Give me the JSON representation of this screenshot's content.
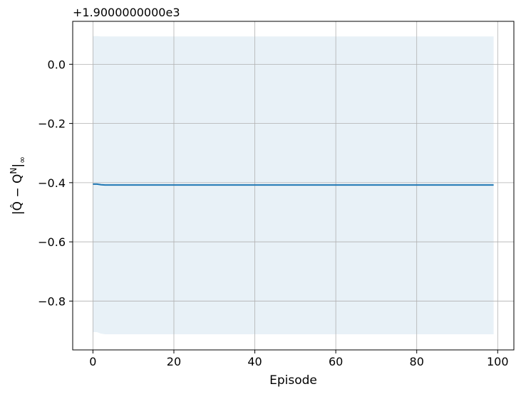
{
  "chart_data": {
    "type": "line",
    "title": "",
    "xlabel": "Episode",
    "ylabel": "|Q̂ − Q^N|∞",
    "y_offset_text": "+1.9000000000e3",
    "xlim": [
      -5,
      104
    ],
    "ylim": [
      -0.965,
      0.145
    ],
    "xticks": [
      0,
      20,
      40,
      60,
      80,
      100
    ],
    "xtick_labels": [
      "0",
      "20",
      "40",
      "60",
      "80",
      "100"
    ],
    "yticks": [
      0.0,
      -0.2,
      -0.4,
      -0.6,
      -0.8
    ],
    "ytick_labels": [
      "0.0",
      "−0.2",
      "−0.4",
      "−0.6",
      "−0.8"
    ],
    "grid": true,
    "series": [
      {
        "color": "#1f77b4",
        "x": [
          0,
          1,
          2,
          3,
          5,
          10,
          20,
          40,
          60,
          80,
          99
        ],
        "y": [
          -0.405,
          -0.405,
          -0.407,
          -0.408,
          -0.408,
          -0.408,
          -0.408,
          -0.408,
          -0.408,
          -0.408,
          -0.408
        ]
      }
    ],
    "band": {
      "color": "#1f77b4",
      "opacity": 0.1,
      "x": [
        0,
        1,
        2,
        3,
        5,
        10,
        20,
        40,
        60,
        80,
        99
      ],
      "upper": [
        0.095,
        0.095,
        0.094,
        0.094,
        0.094,
        0.094,
        0.094,
        0.094,
        0.094,
        0.094,
        0.094
      ],
      "lower": [
        -0.905,
        -0.905,
        -0.91,
        -0.912,
        -0.912,
        -0.912,
        -0.912,
        -0.912,
        -0.912,
        -0.912,
        -0.912
      ]
    }
  }
}
